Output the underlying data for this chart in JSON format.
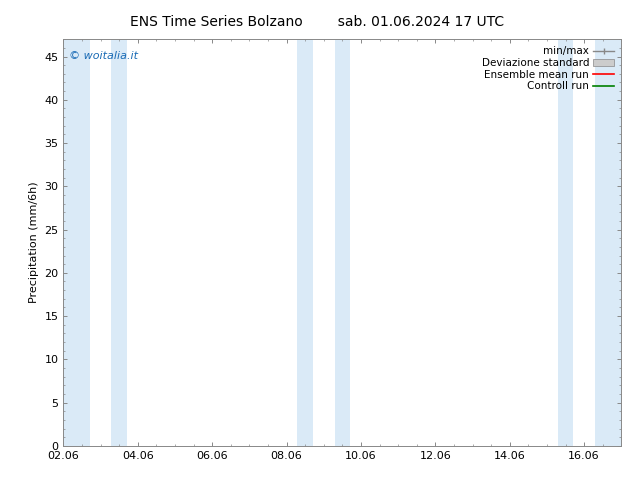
{
  "title_left": "ENS Time Series Bolzano",
  "title_right": "sab. 01.06.2024 17 UTC",
  "ylabel": "Precipitation (mm/6h)",
  "watermark": "© woitalia.it",
  "watermark_color": "#1a6bb5",
  "ylim": [
    0,
    47
  ],
  "yticks": [
    0,
    5,
    10,
    15,
    20,
    25,
    30,
    35,
    40,
    45
  ],
  "xtick_positions": [
    0,
    2,
    4,
    6,
    8,
    10,
    12,
    14
  ],
  "xtick_labels": [
    "02.06",
    "04.06",
    "06.06",
    "08.06",
    "10.06",
    "12.06",
    "14.06",
    "16.06"
  ],
  "xlim": [
    0,
    15
  ],
  "shaded_bands": [
    [
      0.0,
      0.71
    ],
    [
      1.29,
      1.71
    ],
    [
      6.29,
      6.71
    ],
    [
      7.29,
      7.71
    ],
    [
      13.29,
      13.71
    ],
    [
      14.29,
      15.0
    ]
  ],
  "band_color": "#daeaf7",
  "background_color": "#ffffff",
  "title_fontsize": 10,
  "tick_fontsize": 8,
  "ylabel_fontsize": 8,
  "legend_fontsize": 7.5,
  "spine_color": "#888888"
}
